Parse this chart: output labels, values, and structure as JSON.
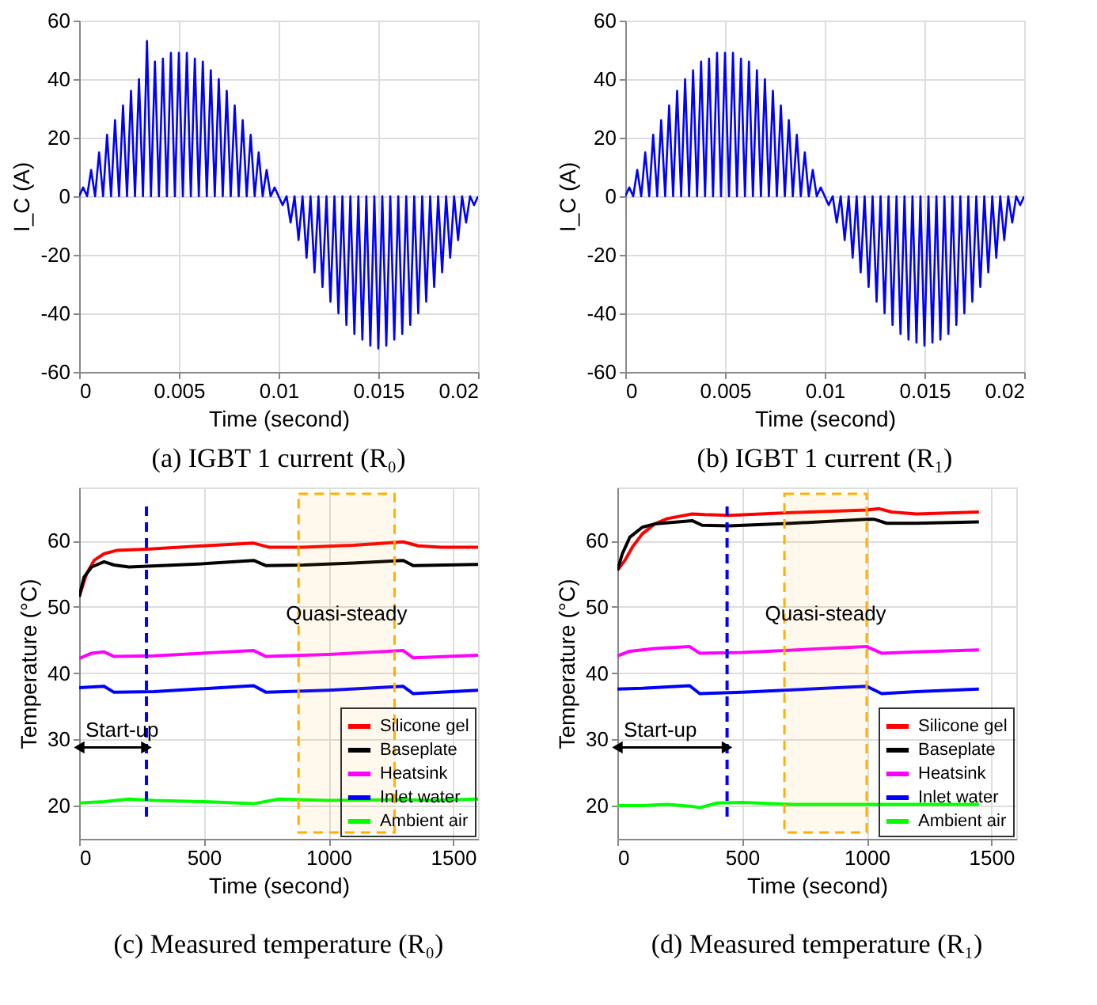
{
  "chart_data": [
    {
      "type": "line",
      "title": "(a) IGBT 1 current (R₀)",
      "xlabel": "Time (second)",
      "ylabel": "I_C (A)",
      "xlim": [
        0,
        0.02
      ],
      "ylim": [
        -60,
        60
      ],
      "xticks": [
        0,
        0.005,
        0.01,
        0.015,
        0.02
      ],
      "yticks": [
        -60,
        -40,
        -20,
        0,
        20,
        40,
        60
      ],
      "grid": true,
      "x": [
        0,
        0.0002,
        0.0004,
        0.0006,
        0.0008,
        0.001,
        0.0012,
        0.0014,
        0.0016,
        0.0018,
        0.002,
        0.0022,
        0.0024,
        0.0026,
        0.0028,
        0.003,
        0.0032,
        0.0034,
        0.0036,
        0.0038,
        0.004,
        0.0042,
        0.0044,
        0.0046,
        0.0048,
        0.005,
        0.0052,
        0.0054,
        0.0056,
        0.0058,
        0.006,
        0.0062,
        0.0064,
        0.0066,
        0.0068,
        0.007,
        0.0072,
        0.0074,
        0.0076,
        0.0078,
        0.008,
        0.0082,
        0.0084,
        0.0086,
        0.0088,
        0.009,
        0.0092,
        0.0094,
        0.0096,
        0.0098,
        0.01,
        0.0102,
        0.0104,
        0.0106,
        0.0108,
        0.011,
        0.0112,
        0.0114,
        0.0116,
        0.0118,
        0.012,
        0.0122,
        0.0124,
        0.0126,
        0.0128,
        0.013,
        0.0132,
        0.0134,
        0.0136,
        0.0138,
        0.014,
        0.0142,
        0.0144,
        0.0146,
        0.0148,
        0.015,
        0.0152,
        0.0154,
        0.0156,
        0.0158,
        0.016,
        0.0162,
        0.0164,
        0.0166,
        0.0168,
        0.017,
        0.0172,
        0.0174,
        0.0176,
        0.0178,
        0.018,
        0.0182,
        0.0184,
        0.0186,
        0.0188,
        0.019,
        0.0192,
        0.0194,
        0.0196,
        0.0198,
        0.02
      ],
      "series": [
        {
          "color": "#0000ff",
          "values": [
            0,
            3,
            0,
            9,
            0,
            15,
            0,
            21,
            0,
            26,
            0,
            31,
            0,
            36,
            0,
            40,
            0,
            53,
            0,
            46,
            0,
            47,
            0,
            49,
            0,
            49,
            0,
            49,
            0,
            47,
            0,
            46,
            0,
            43,
            0,
            40,
            0,
            36,
            0,
            31,
            0,
            26,
            0,
            21,
            0,
            15,
            0,
            9,
            0,
            3,
            0,
            -3,
            0,
            -9,
            0,
            -15,
            0,
            -21,
            0,
            -26,
            0,
            -31,
            0,
            -36,
            0,
            -40,
            0,
            -44,
            0,
            -47,
            0,
            -49,
            0,
            -51,
            0,
            -52,
            0,
            -51,
            0,
            -49,
            0,
            -47,
            0,
            -44,
            0,
            -40,
            0,
            -36,
            0,
            -31,
            0,
            -26,
            0,
            -21,
            0,
            -15,
            0,
            -9,
            0,
            -3,
            0
          ]
        }
      ]
    },
    {
      "type": "line",
      "title": "(b) IGBT 1 current (R₁)",
      "xlabel": "Time (second)",
      "ylabel": "I_C (A)",
      "xlim": [
        0,
        0.02
      ],
      "ylim": [
        -60,
        60
      ],
      "xticks": [
        0,
        0.005,
        0.01,
        0.015,
        0.02
      ],
      "yticks": [
        -60,
        -40,
        -20,
        0,
        20,
        40,
        60
      ],
      "grid": true,
      "x": [
        0,
        0.0002,
        0.0004,
        0.0006,
        0.0008,
        0.001,
        0.0012,
        0.0014,
        0.0016,
        0.0018,
        0.002,
        0.0022,
        0.0024,
        0.0026,
        0.0028,
        0.003,
        0.0032,
        0.0034,
        0.0036,
        0.0038,
        0.004,
        0.0042,
        0.0044,
        0.0046,
        0.0048,
        0.005,
        0.0052,
        0.0054,
        0.0056,
        0.0058,
        0.006,
        0.0062,
        0.0064,
        0.0066,
        0.0068,
        0.007,
        0.0072,
        0.0074,
        0.0076,
        0.0078,
        0.008,
        0.0082,
        0.0084,
        0.0086,
        0.0088,
        0.009,
        0.0092,
        0.0094,
        0.0096,
        0.0098,
        0.01,
        0.0102,
        0.0104,
        0.0106,
        0.0108,
        0.011,
        0.0112,
        0.0114,
        0.0116,
        0.0118,
        0.012,
        0.0122,
        0.0124,
        0.0126,
        0.0128,
        0.013,
        0.0132,
        0.0134,
        0.0136,
        0.0138,
        0.014,
        0.0142,
        0.0144,
        0.0146,
        0.0148,
        0.015,
        0.0152,
        0.0154,
        0.0156,
        0.0158,
        0.016,
        0.0162,
        0.0164,
        0.0166,
        0.0168,
        0.017,
        0.0172,
        0.0174,
        0.0176,
        0.0178,
        0.018,
        0.0182,
        0.0184,
        0.0186,
        0.0188,
        0.019,
        0.0192,
        0.0194,
        0.0196,
        0.0198,
        0.02
      ],
      "series": [
        {
          "color": "#0000ff",
          "values": [
            0,
            3,
            0,
            9,
            0,
            15,
            0,
            21,
            0,
            26,
            0,
            31,
            0,
            36,
            0,
            40,
            0,
            43,
            0,
            46,
            0,
            47,
            0,
            49,
            0,
            49,
            0,
            49,
            0,
            47,
            0,
            46,
            0,
            43,
            0,
            40,
            0,
            36,
            0,
            31,
            0,
            26,
            0,
            21,
            0,
            15,
            0,
            9,
            0,
            3,
            0,
            -3,
            0,
            -9,
            0,
            -15,
            0,
            -21,
            0,
            -26,
            0,
            -31,
            0,
            -36,
            0,
            -40,
            0,
            -44,
            0,
            -47,
            0,
            -49,
            0,
            -50,
            0,
            -51,
            0,
            -50,
            0,
            -49,
            0,
            -47,
            0,
            -44,
            0,
            -40,
            0,
            -36,
            0,
            -31,
            0,
            -26,
            0,
            -21,
            0,
            -15,
            0,
            -9,
            0,
            -3,
            0
          ]
        }
      ]
    },
    {
      "type": "line",
      "title": "(c) Measured temperature (R₀)",
      "xlabel": "Time (second)",
      "ylabel": "Temperature (°C)",
      "xlim": [
        0,
        1600
      ],
      "ylim": [
        15,
        68
      ],
      "xticks": [
        0,
        500,
        1000,
        1500
      ],
      "yticks": [
        20,
        30,
        40,
        50,
        60
      ],
      "grid": true,
      "legend": "bottom right",
      "series": [
        {
          "name": "Silicone gel",
          "color": "#ff0000",
          "x": [
            0,
            30,
            60,
            100,
            150,
            270,
            500,
            700,
            760,
            900,
            1100,
            1300,
            1360,
            1450,
            1600
          ],
          "values": [
            51.5,
            55,
            57,
            58,
            58.5,
            58.7,
            59.2,
            59.6,
            59,
            59,
            59.3,
            59.8,
            59.2,
            59,
            59
          ]
        },
        {
          "name": "Baseplate",
          "color": "#000000",
          "x": [
            0,
            20,
            50,
            100,
            140,
            200,
            500,
            700,
            750,
            900,
            1100,
            1300,
            1340,
            1600
          ],
          "values": [
            51.5,
            54.5,
            56,
            56.8,
            56.3,
            56,
            56.5,
            57,
            56.2,
            56.3,
            56.6,
            57,
            56.2,
            56.4
          ]
        },
        {
          "name": "Heatsink",
          "color": "#ff00ff",
          "x": [
            0,
            50,
            100,
            140,
            300,
            700,
            750,
            1000,
            1300,
            1340,
            1600
          ],
          "values": [
            42.2,
            43,
            43.2,
            42.5,
            42.6,
            43.4,
            42.5,
            42.8,
            43.4,
            42.3,
            42.7
          ]
        },
        {
          "name": "Inlet water",
          "color": "#0000ff",
          "x": [
            0,
            100,
            140,
            300,
            700,
            750,
            1000,
            1300,
            1340,
            1600
          ],
          "values": [
            37.8,
            38,
            37.1,
            37.2,
            38.1,
            37.1,
            37.4,
            38,
            36.9,
            37.4
          ]
        },
        {
          "name": "Ambient air",
          "color": "#00ff00",
          "x": [
            0,
            100,
            200,
            300,
            500,
            700,
            800,
            1000,
            1300,
            1400,
            1600
          ],
          "values": [
            20.4,
            20.6,
            21,
            20.8,
            20.6,
            20.3,
            21,
            20.8,
            20.9,
            20.8,
            21
          ]
        }
      ],
      "ref_lines": [
        {
          "axis": "x",
          "value": 270,
          "color": "#0000ff",
          "line_style": "dashed"
        }
      ],
      "bands": [
        {
          "axis": "x",
          "from": 880,
          "to": 1265,
          "color": "#ffb000"
        }
      ],
      "annotations": [
        "Quasi-steady",
        "Start-up"
      ]
    },
    {
      "type": "line",
      "title": "(d) Measured temperature (R₁)",
      "xlabel": "Time (second)",
      "ylabel": "Temperature (°C)",
      "xlim": [
        0,
        1600
      ],
      "ylim": [
        15,
        68
      ],
      "xticks": [
        0,
        500,
        1000,
        1500
      ],
      "yticks": [
        20,
        30,
        40,
        50,
        60
      ],
      "grid": true,
      "legend": "bottom right",
      "series": [
        {
          "name": "Silicone gel",
          "color": "#ff0000",
          "x": [
            0,
            30,
            60,
            100,
            150,
            200,
            300,
            350,
            450,
            700,
            1000,
            1050,
            1100,
            1200,
            1450
          ],
          "values": [
            55.5,
            57,
            59,
            61,
            62.5,
            63.3,
            64,
            63.9,
            63.8,
            64.2,
            64.6,
            64.8,
            64.3,
            64,
            64.3
          ]
        },
        {
          "name": "Baseplate",
          "color": "#000000",
          "x": [
            0,
            20,
            50,
            100,
            150,
            300,
            340,
            450,
            700,
            1000,
            1030,
            1080,
            1200,
            1450
          ],
          "values": [
            55.5,
            58,
            60.5,
            62,
            62.5,
            63,
            62.3,
            62.2,
            62.6,
            63.2,
            63.2,
            62.6,
            62.6,
            62.8
          ]
        },
        {
          "name": "Heatsink",
          "color": "#ff00ff",
          "x": [
            0,
            50,
            150,
            290,
            330,
            500,
            1000,
            1060,
            1200,
            1450
          ],
          "values": [
            42.6,
            43.3,
            43.7,
            44,
            43,
            43.1,
            44,
            43,
            43.2,
            43.5
          ]
        },
        {
          "name": "Inlet water",
          "color": "#0000ff",
          "x": [
            0,
            100,
            290,
            330,
            500,
            1000,
            1060,
            1200,
            1450
          ],
          "values": [
            37.6,
            37.7,
            38.1,
            36.9,
            37.1,
            38,
            36.9,
            37.2,
            37.6
          ]
        },
        {
          "name": "Ambient air",
          "color": "#00ff00",
          "x": [
            0,
            100,
            200,
            300,
            330,
            400,
            500,
            700,
            1000,
            1200,
            1450
          ],
          "values": [
            20,
            20,
            20.2,
            19.9,
            19.7,
            20.4,
            20.5,
            20.2,
            20.2,
            20.2,
            20.2
          ]
        }
      ],
      "ref_lines": [
        {
          "axis": "x",
          "value": 440,
          "color": "#0000ff",
          "line_style": "dashed"
        }
      ],
      "bands": [
        {
          "axis": "x",
          "from": 670,
          "to": 1000,
          "color": "#ffb000"
        }
      ],
      "annotations": [
        "Quasi-steady",
        "Start-up"
      ]
    }
  ]
}
